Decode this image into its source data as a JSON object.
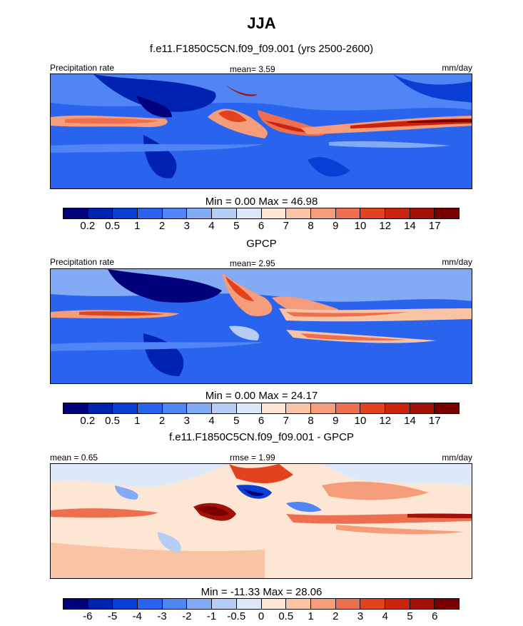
{
  "title": "JJA",
  "colors": {
    "abs_scale": [
      "#00007a",
      "#0022b0",
      "#0a3fd6",
      "#2a63ee",
      "#4f85f5",
      "#82aaf5",
      "#b5cdf5",
      "#dde9fa",
      "#fde6d4",
      "#f9c4a6",
      "#f59c7a",
      "#ee6f4f",
      "#e3421f",
      "#c9230e",
      "#a31208",
      "#7a0000"
    ],
    "diff_scale": [
      "#00007a",
      "#0022b0",
      "#0a3fd6",
      "#2a63ee",
      "#4f85f5",
      "#82aaf5",
      "#b5cdf5",
      "#dde9fa",
      "#fde6d4",
      "#f9c4a6",
      "#f59c7a",
      "#ee6f4f",
      "#e3421f",
      "#c9230e",
      "#a31208",
      "#7a0000"
    ]
  },
  "chart_data": [
    {
      "type": "heatmap",
      "title": "f.e11.F1850C5CN.f09_f09.001 (yrs 2500-2600)",
      "left_label": "Precipitation rate",
      "center_label": "mean=   3.59",
      "right_label": "mm/day",
      "mean": 3.59,
      "min": 0.0,
      "max": 46.98,
      "min_max_text": "Min =   0.00 Max =  46.98",
      "colorbar_ticks": [
        "0.2",
        "0.5",
        "1",
        "2",
        "3",
        "4",
        "5",
        "6",
        "7",
        "8",
        "9",
        "10",
        "12",
        "14",
        "17"
      ]
    },
    {
      "type": "heatmap",
      "title": "GPCP",
      "left_label": "Precipitation rate",
      "center_label": "mean=   2.95",
      "right_label": "mm/day",
      "mean": 2.95,
      "min": 0.0,
      "max": 24.17,
      "min_max_text": "Min =   0.00 Max =  24.17",
      "colorbar_ticks": [
        "0.2",
        "0.5",
        "1",
        "2",
        "3",
        "4",
        "5",
        "6",
        "7",
        "8",
        "9",
        "10",
        "12",
        "14",
        "17"
      ]
    },
    {
      "type": "heatmap",
      "title": "f.e11.F1850C5CN.f09_f09.001 - GPCP",
      "left_label": "mean =   0.65",
      "center_label": "rmse =   1.99",
      "right_label": "mm/day",
      "mean": 0.65,
      "rmse": 1.99,
      "min": -11.33,
      "max": 28.06,
      "min_max_text": "Min = -11.33 Max =  28.06",
      "colorbar_ticks": [
        "-6",
        "-5",
        "-4",
        "-3",
        "-2",
        "-1",
        "-0.5",
        "0",
        "0.5",
        "1",
        "2",
        "3",
        "4",
        "5",
        "6"
      ]
    }
  ]
}
